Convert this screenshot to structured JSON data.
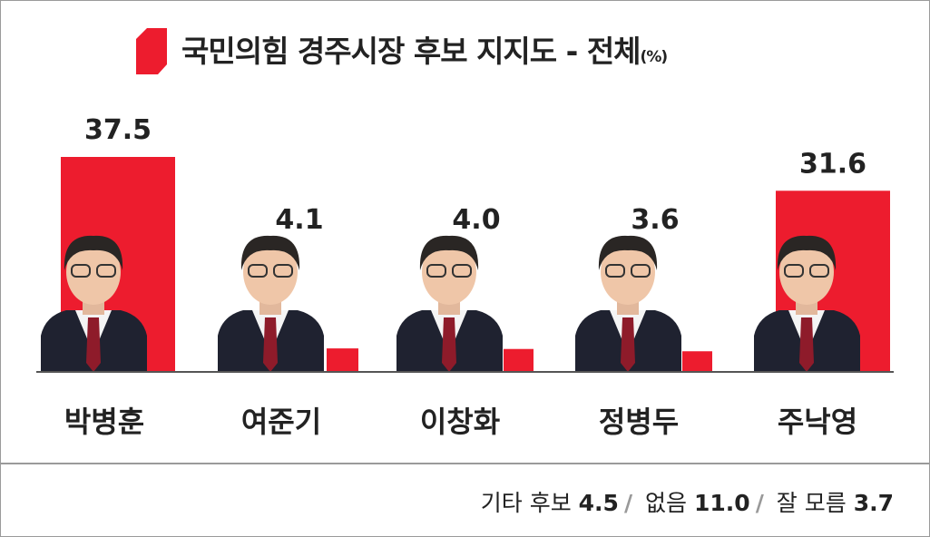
{
  "chart_data": {
    "type": "bar",
    "title": "국민의힘  경주시장 후보 지지도 - 전체",
    "title_unit": "(%)",
    "categories": [
      "박병훈",
      "여준기",
      "이창화",
      "정병두",
      "주낙영"
    ],
    "values": [
      37.5,
      4.1,
      4.0,
      3.6,
      31.6
    ],
    "value_labels": [
      "37.5",
      "4.1",
      "4.0",
      "3.6",
      "31.6"
    ],
    "xlabel": "",
    "ylabel": "",
    "ylim": [
      0,
      40
    ],
    "grid": false,
    "bar_color": "#ed1c2e",
    "others": [
      {
        "label": "기타 후보",
        "value": "4.5"
      },
      {
        "label": "없음",
        "value": "11.0"
      },
      {
        "label": "잘 모름",
        "value": "3.7"
      }
    ]
  },
  "colors": {
    "accent": "#ed1c2e",
    "text": "#222222",
    "border": "#9a9a9a"
  }
}
